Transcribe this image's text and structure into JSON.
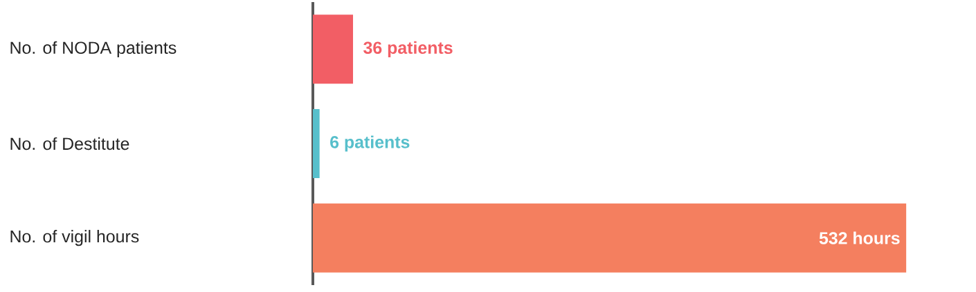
{
  "chart_data": {
    "type": "bar",
    "orientation": "horizontal",
    "categories": [
      "No. of NODA patients",
      "No. of Destitute",
      "No. of vigil hours"
    ],
    "values": [
      36,
      6,
      532
    ],
    "colors": [
      "#f25e65",
      "#57bfcb",
      "#f47f5f"
    ],
    "value_labels": [
      "36 patients",
      "6 patients",
      "532 hours"
    ]
  }
}
